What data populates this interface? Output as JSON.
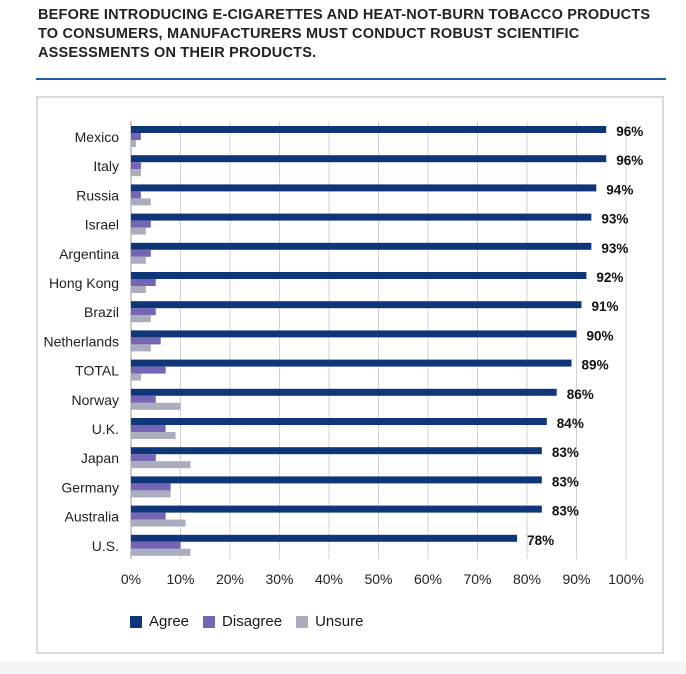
{
  "title": "BEFORE INTRODUCING E-CIGARETTES AND HEAT-NOT-BURN TOBACCO PRODUCTS TO CONSUMERS, MANUFACTURERS MUST CONDUCT ROBUST SCIENTIFIC ASSESSMENTS ON THEIR PRODUCTS.",
  "colors": {
    "agree": "#10367a",
    "disagree": "#7565b5",
    "unsure": "#a9adbd",
    "accent_rule": "#1f5fa8"
  },
  "legend": [
    {
      "label": "Agree",
      "color": "#10367a"
    },
    {
      "label": "Disagree",
      "color": "#7565b5"
    },
    {
      "label": "Unsure",
      "color": "#a9adbd"
    }
  ],
  "chart_data": {
    "type": "bar",
    "orientation": "horizontal",
    "categories": [
      "Mexico",
      "Italy",
      "Russia",
      "Israel",
      "Argentina",
      "Hong Kong",
      "Brazil",
      "Netherlands",
      "TOTAL",
      "Norway",
      "U.K.",
      "Japan",
      "Germany",
      "Australia",
      "U.S."
    ],
    "series": [
      {
        "name": "Agree",
        "values": [
          96,
          96,
          94,
          93,
          93,
          92,
          91,
          90,
          89,
          86,
          84,
          83,
          83,
          83,
          78
        ]
      },
      {
        "name": "Disagree",
        "values": [
          2,
          2,
          2,
          4,
          4,
          5,
          5,
          6,
          7,
          5,
          7,
          5,
          8,
          7,
          10
        ]
      },
      {
        "name": "Unsure",
        "values": [
          1,
          2,
          4,
          3,
          3,
          3,
          4,
          4,
          2,
          10,
          9,
          12,
          8,
          11,
          12
        ]
      }
    ],
    "data_labels": [
      "96%",
      "96%",
      "94%",
      "93%",
      "93%",
      "92%",
      "91%",
      "90%",
      "89%",
      "86%",
      "84%",
      "83%",
      "83%",
      "83%",
      "78%"
    ],
    "xticks": [
      "0%",
      "10%",
      "20%",
      "30%",
      "40%",
      "50%",
      "60%",
      "70%",
      "80%",
      "90%",
      "100%"
    ],
    "xlim": [
      0,
      100
    ],
    "grid": true,
    "legend_position": "bottom-left"
  }
}
